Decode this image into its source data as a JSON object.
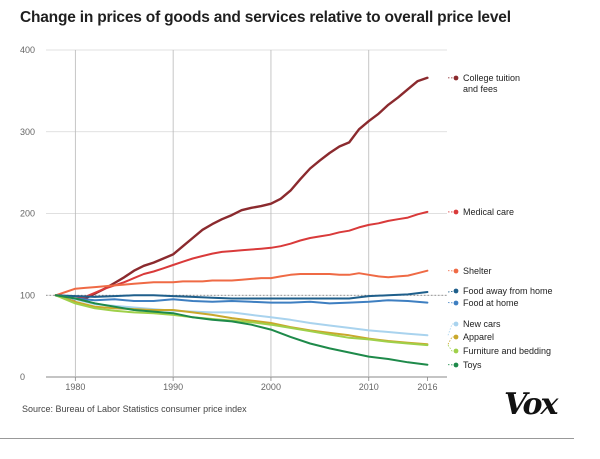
{
  "chart_data": {
    "type": "line",
    "title": "Change in prices of goods and services relative to overall price level",
    "source": "Source: Bureau of Labor Statistics consumer price index",
    "logo": "Vox",
    "xlim": [
      1977,
      2018
    ],
    "ylim": [
      0,
      400
    ],
    "x_ticks": [
      1980,
      1990,
      2000,
      2010,
      2016
    ],
    "y_ticks": [
      0,
      100,
      200,
      300,
      400
    ],
    "baseline": 100,
    "grid": "vertical",
    "legend": "right-end labels",
    "series": [
      {
        "name": "College tuition and fees",
        "color": "#8b2a2e",
        "label_lines": [
          "College tuition",
          "and fees"
        ],
        "points": [
          [
            1978,
            100
          ],
          [
            1979,
            97
          ],
          [
            1980,
            95
          ],
          [
            1981,
            96
          ],
          [
            1982,
            102
          ],
          [
            1983,
            108
          ],
          [
            1984,
            115
          ],
          [
            1985,
            122
          ],
          [
            1986,
            130
          ],
          [
            1987,
            136
          ],
          [
            1988,
            140
          ],
          [
            1989,
            145
          ],
          [
            1990,
            150
          ],
          [
            1991,
            160
          ],
          [
            1992,
            170
          ],
          [
            1993,
            180
          ],
          [
            1994,
            187
          ],
          [
            1995,
            193
          ],
          [
            1996,
            198
          ],
          [
            1997,
            204
          ],
          [
            1998,
            207
          ],
          [
            1999,
            209
          ],
          [
            2000,
            212
          ],
          [
            2001,
            218
          ],
          [
            2002,
            228
          ],
          [
            2003,
            242
          ],
          [
            2004,
            255
          ],
          [
            2005,
            265
          ],
          [
            2006,
            274
          ],
          [
            2007,
            282
          ],
          [
            2008,
            287
          ],
          [
            2009,
            303
          ],
          [
            2010,
            313
          ],
          [
            2011,
            322
          ],
          [
            2012,
            333
          ],
          [
            2013,
            342
          ],
          [
            2014,
            352
          ],
          [
            2015,
            362
          ],
          [
            2016,
            366
          ]
        ]
      },
      {
        "name": "Medical care",
        "color": "#d93a3a",
        "label_lines": [
          "Medical care"
        ],
        "points": [
          [
            1978,
            100
          ],
          [
            1979,
            98
          ],
          [
            1980,
            96
          ],
          [
            1981,
            98
          ],
          [
            1982,
            103
          ],
          [
            1983,
            108
          ],
          [
            1984,
            112
          ],
          [
            1985,
            116
          ],
          [
            1986,
            121
          ],
          [
            1987,
            126
          ],
          [
            1988,
            129
          ],
          [
            1989,
            133
          ],
          [
            1990,
            137
          ],
          [
            1991,
            141
          ],
          [
            1992,
            145
          ],
          [
            1993,
            148
          ],
          [
            1994,
            151
          ],
          [
            1995,
            153
          ],
          [
            1996,
            154
          ],
          [
            1997,
            155
          ],
          [
            1998,
            156
          ],
          [
            1999,
            157
          ],
          [
            2000,
            158
          ],
          [
            2001,
            160
          ],
          [
            2002,
            163
          ],
          [
            2003,
            167
          ],
          [
            2004,
            170
          ],
          [
            2005,
            172
          ],
          [
            2006,
            174
          ],
          [
            2007,
            177
          ],
          [
            2008,
            179
          ],
          [
            2009,
            183
          ],
          [
            2010,
            186
          ],
          [
            2011,
            188
          ],
          [
            2012,
            191
          ],
          [
            2013,
            193
          ],
          [
            2014,
            195
          ],
          [
            2015,
            199
          ],
          [
            2016,
            202
          ]
        ]
      },
      {
        "name": "Shelter",
        "color": "#ef6a45",
        "label_lines": [
          "Shelter"
        ],
        "points": [
          [
            1978,
            100
          ],
          [
            1979,
            104
          ],
          [
            1980,
            108
          ],
          [
            1981,
            109
          ],
          [
            1982,
            110
          ],
          [
            1983,
            111
          ],
          [
            1984,
            112
          ],
          [
            1985,
            113
          ],
          [
            1986,
            114
          ],
          [
            1987,
            115
          ],
          [
            1988,
            116
          ],
          [
            1989,
            116
          ],
          [
            1990,
            116
          ],
          [
            1991,
            117
          ],
          [
            1992,
            117
          ],
          [
            1993,
            117
          ],
          [
            1994,
            118
          ],
          [
            1995,
            118
          ],
          [
            1996,
            118
          ],
          [
            1997,
            119
          ],
          [
            1998,
            120
          ],
          [
            1999,
            121
          ],
          [
            2000,
            121
          ],
          [
            2001,
            123
          ],
          [
            2002,
            125
          ],
          [
            2003,
            126
          ],
          [
            2004,
            126
          ],
          [
            2005,
            126
          ],
          [
            2006,
            126
          ],
          [
            2007,
            125
          ],
          [
            2008,
            125
          ],
          [
            2009,
            127
          ],
          [
            2010,
            125
          ],
          [
            2011,
            123
          ],
          [
            2012,
            122
          ],
          [
            2013,
            123
          ],
          [
            2014,
            124
          ],
          [
            2015,
            127
          ],
          [
            2016,
            130
          ]
        ]
      },
      {
        "name": "Food away from home",
        "color": "#1f5f8b",
        "label_lines": [
          "Food away from home"
        ],
        "points": [
          [
            1978,
            100
          ],
          [
            1980,
            99
          ],
          [
            1982,
            98
          ],
          [
            1984,
            99
          ],
          [
            1986,
            100
          ],
          [
            1988,
            100
          ],
          [
            1990,
            99
          ],
          [
            1992,
            98
          ],
          [
            1994,
            97
          ],
          [
            1996,
            96
          ],
          [
            1998,
            96
          ],
          [
            2000,
            96
          ],
          [
            2002,
            96
          ],
          [
            2004,
            96
          ],
          [
            2006,
            96
          ],
          [
            2008,
            96
          ],
          [
            2010,
            99
          ],
          [
            2012,
            100
          ],
          [
            2014,
            101
          ],
          [
            2016,
            104
          ]
        ]
      },
      {
        "name": "Food at home",
        "color": "#3e7fc1",
        "label_lines": [
          "Food at home"
        ],
        "points": [
          [
            1978,
            100
          ],
          [
            1980,
            96
          ],
          [
            1982,
            94
          ],
          [
            1984,
            95
          ],
          [
            1986,
            93
          ],
          [
            1988,
            93
          ],
          [
            1990,
            95
          ],
          [
            1992,
            93
          ],
          [
            1994,
            92
          ],
          [
            1996,
            93
          ],
          [
            1998,
            92
          ],
          [
            2000,
            91
          ],
          [
            2002,
            91
          ],
          [
            2004,
            92
          ],
          [
            2006,
            90
          ],
          [
            2008,
            91
          ],
          [
            2010,
            92
          ],
          [
            2012,
            94
          ],
          [
            2014,
            93
          ],
          [
            2016,
            91
          ]
        ]
      },
      {
        "name": "New cars",
        "color": "#a9d3ee",
        "label_lines": [
          "New cars"
        ],
        "points": [
          [
            1978,
            100
          ],
          [
            1980,
            95
          ],
          [
            1982,
            89
          ],
          [
            1984,
            87
          ],
          [
            1986,
            85
          ],
          [
            1988,
            83
          ],
          [
            1990,
            81
          ],
          [
            1992,
            80
          ],
          [
            1994,
            79
          ],
          [
            1996,
            79
          ],
          [
            1998,
            76
          ],
          [
            2000,
            73
          ],
          [
            2002,
            70
          ],
          [
            2004,
            66
          ],
          [
            2006,
            63
          ],
          [
            2008,
            60
          ],
          [
            2010,
            57
          ],
          [
            2012,
            55
          ],
          [
            2014,
            53
          ],
          [
            2016,
            51
          ]
        ]
      },
      {
        "name": "Apparel",
        "color": "#c9a82c",
        "label_lines": [
          "Apparel"
        ],
        "points": [
          [
            1978,
            100
          ],
          [
            1980,
            92
          ],
          [
            1982,
            86
          ],
          [
            1984,
            84
          ],
          [
            1986,
            83
          ],
          [
            1988,
            82
          ],
          [
            1990,
            82
          ],
          [
            1992,
            79
          ],
          [
            1994,
            76
          ],
          [
            1996,
            72
          ],
          [
            1998,
            69
          ],
          [
            2000,
            66
          ],
          [
            2002,
            61
          ],
          [
            2004,
            57
          ],
          [
            2006,
            54
          ],
          [
            2008,
            51
          ],
          [
            2010,
            47
          ],
          [
            2012,
            44
          ],
          [
            2014,
            42
          ],
          [
            2016,
            40
          ]
        ]
      },
      {
        "name": "Furniture and bedding",
        "color": "#9fd04a",
        "label_lines": [
          "Furniture and bedding"
        ],
        "points": [
          [
            1978,
            100
          ],
          [
            1980,
            90
          ],
          [
            1982,
            84
          ],
          [
            1984,
            81
          ],
          [
            1986,
            79
          ],
          [
            1988,
            78
          ],
          [
            1990,
            76
          ],
          [
            1992,
            73
          ],
          [
            1994,
            71
          ],
          [
            1996,
            69
          ],
          [
            1998,
            67
          ],
          [
            2000,
            64
          ],
          [
            2002,
            60
          ],
          [
            2004,
            56
          ],
          [
            2006,
            52
          ],
          [
            2008,
            48
          ],
          [
            2010,
            46
          ],
          [
            2012,
            43
          ],
          [
            2014,
            41
          ],
          [
            2016,
            39
          ]
        ]
      },
      {
        "name": "Toys",
        "color": "#1e8a4a",
        "label_lines": [
          "Toys"
        ],
        "points": [
          [
            1978,
            100
          ],
          [
            1980,
            96
          ],
          [
            1982,
            90
          ],
          [
            1984,
            86
          ],
          [
            1986,
            82
          ],
          [
            1988,
            80
          ],
          [
            1990,
            78
          ],
          [
            1992,
            73
          ],
          [
            1994,
            70
          ],
          [
            1996,
            68
          ],
          [
            1998,
            64
          ],
          [
            2000,
            58
          ],
          [
            2002,
            49
          ],
          [
            2004,
            41
          ],
          [
            2006,
            35
          ],
          [
            2008,
            30
          ],
          [
            2010,
            25
          ],
          [
            2012,
            22
          ],
          [
            2014,
            18
          ],
          [
            2016,
            15
          ]
        ]
      }
    ]
  }
}
